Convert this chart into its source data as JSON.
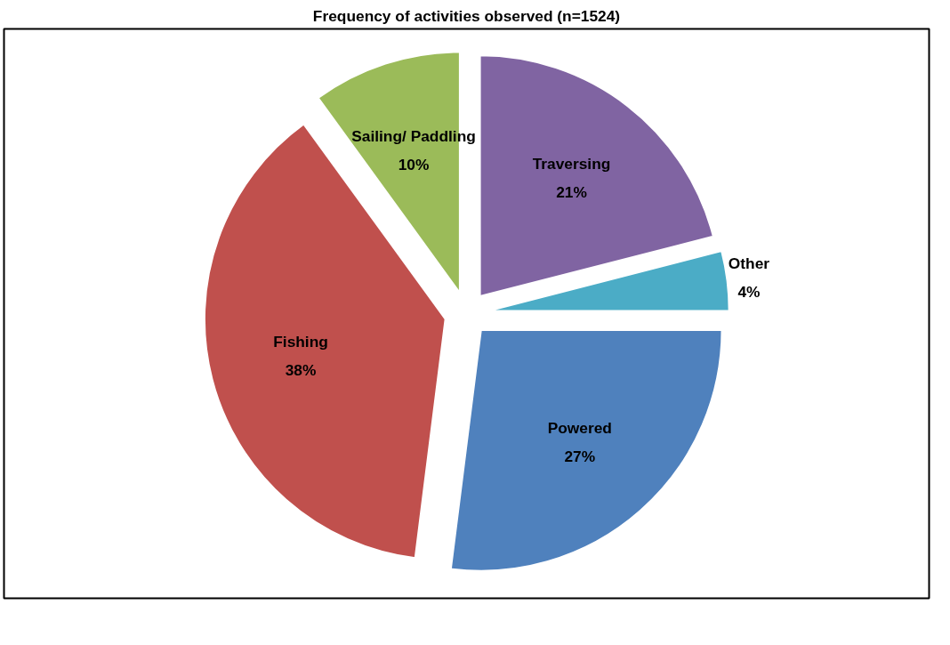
{
  "chart_data": {
    "type": "pie",
    "title": "Frequency of activities observed (n=1524)",
    "categories": [
      "Traversing",
      "Other",
      "Powered",
      "Fishing",
      "Sailing/ Paddling"
    ],
    "values": [
      21,
      4,
      27,
      38,
      10
    ],
    "colors": [
      "#8064a2",
      "#4bacc6",
      "#4f81bd",
      "#c0504d",
      "#9bbb59"
    ],
    "value_labels": [
      "21%",
      "4%",
      "27%",
      "38%",
      "10%"
    ]
  }
}
